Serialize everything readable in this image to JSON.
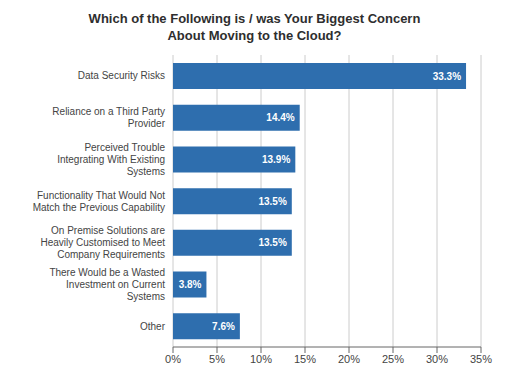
{
  "chart_data": {
    "type": "bar",
    "orientation": "horizontal",
    "title": "Which of the Following is / was Your Biggest Concern\nAbout Moving to the Cloud?",
    "categories": [
      "Other",
      "There Would be a Wasted\nInvestment on Current\nSystems",
      "On Premise Solutions are\nHeavily Customised to Meet\nCompany Requirements",
      "Functionality That Would Not\nMatch the Previous Capability",
      "Perceived Trouble\nIntegrating With Existing\nSystems",
      "Reliance on a Third Party\nProvider",
      "Data Security Risks"
    ],
    "values": [
      7.6,
      3.8,
      13.5,
      13.5,
      13.9,
      14.4,
      33.3
    ],
    "value_labels": [
      "7.6%",
      "3.8%",
      "13.5%",
      "13.5%",
      "13.9%",
      "14.4%",
      "33.3%"
    ],
    "data_labels": true,
    "color": "#2E6EAE",
    "xlim": [
      0,
      35
    ],
    "xticks": [
      {
        "value": 0,
        "label": "0%"
      },
      {
        "value": 5,
        "label": "5%"
      },
      {
        "value": 10,
        "label": "10%"
      },
      {
        "value": 15,
        "label": "15%"
      },
      {
        "value": 20,
        "label": "20%"
      },
      {
        "value": 25,
        "label": "25%"
      },
      {
        "value": 30,
        "label": "30%"
      },
      {
        "value": 35,
        "label": "35%"
      }
    ],
    "grid": true
  }
}
